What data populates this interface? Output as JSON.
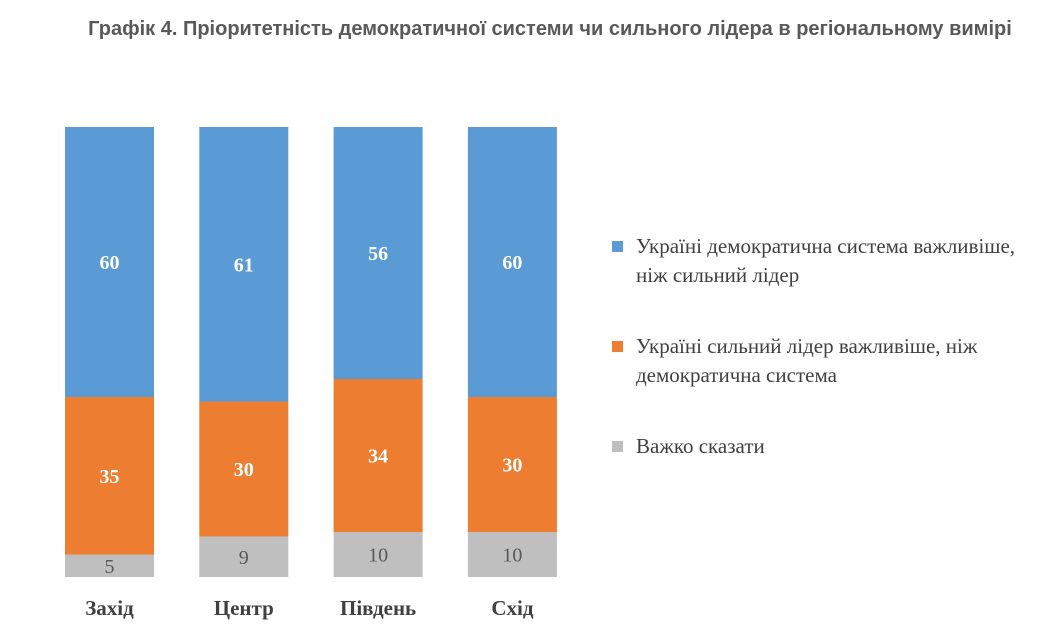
{
  "title": "Графік 4. Пріоритетність демократичної системи чи сильного лідера в регіональному вимірі",
  "colors": {
    "democracy": "#5B9BD5",
    "leader": "#ED7D31",
    "hard_to_say": "#BFBFBF",
    "label_light": "#ffffff",
    "label_dark": "#595959"
  },
  "legend": {
    "items": [
      {
        "label": "Україні демократична система важливіше, ніж сильний лідер",
        "color": "#5B9BD5"
      },
      {
        "label": "Україні сильний лідер важливіше, ніж демократична система",
        "color": "#ED7D31"
      },
      {
        "label": "Важко сказати",
        "color": "#BFBFBF"
      }
    ]
  },
  "chart_data": {
    "type": "bar",
    "stacked": true,
    "categories": [
      "Захід",
      "Центр",
      "Південь",
      "Схід"
    ],
    "series": [
      {
        "name": "Україні демократична система важливіше, ніж сильний лідер",
        "values": [
          60,
          61,
          56,
          60
        ],
        "color": "#5B9BD5"
      },
      {
        "name": "Україні сильний лідер важливіше, ніж демократична система",
        "values": [
          35,
          30,
          34,
          30
        ],
        "color": "#ED7D31"
      },
      {
        "name": "Важко сказати",
        "values": [
          5,
          9,
          10,
          10
        ],
        "color": "#BFBFBF"
      }
    ],
    "ylim": [
      0,
      100
    ],
    "grid": false,
    "legend_position": "right"
  }
}
